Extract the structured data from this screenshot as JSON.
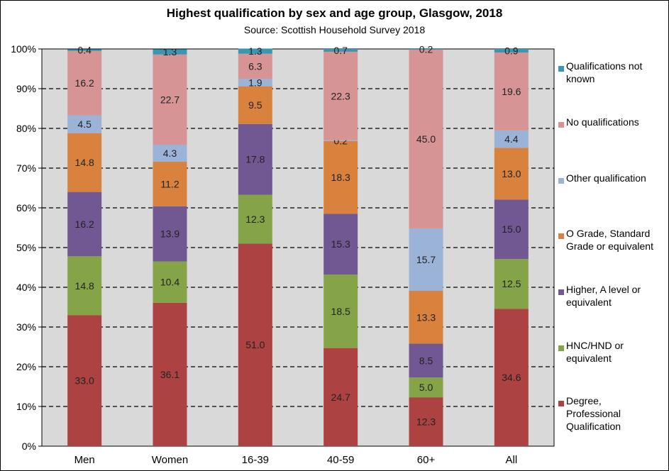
{
  "chart_data": {
    "type": "bar",
    "stacked": true,
    "title": "Highest qualification by sex and age group, Glasgow, 2018",
    "subtitle": "Source: Scottish Household Survey 2018",
    "categories": [
      "Men",
      "Women",
      "16-39",
      "40-59",
      "60+",
      "All"
    ],
    "y_ticks": [
      "0%",
      "10%",
      "20%",
      "30%",
      "40%",
      "50%",
      "60%",
      "70%",
      "80%",
      "90%",
      "100%"
    ],
    "ylim": [
      0,
      100
    ],
    "legend_position": "right",
    "series": [
      {
        "name": "Degree, Professional Qualification",
        "color": "#AC4241",
        "values": [
          33.0,
          36.1,
          51.0,
          24.7,
          12.3,
          34.6
        ]
      },
      {
        "name": "HNC/HND or equivalent",
        "color": "#84A447",
        "values": [
          14.8,
          10.4,
          12.3,
          18.5,
          5.0,
          12.5
        ]
      },
      {
        "name": "Higher, A level or equivalent",
        "color": "#725892",
        "values": [
          16.2,
          13.9,
          17.8,
          15.3,
          8.5,
          15.0
        ]
      },
      {
        "name": "O Grade, Standard Grade or equivalent",
        "color": "#D9823D",
        "values": [
          14.8,
          11.2,
          9.5,
          18.3,
          13.3,
          13.0
        ]
      },
      {
        "name": "Other qualification",
        "color": "#9AB3D6",
        "values": [
          4.5,
          4.3,
          1.9,
          0.2,
          15.7,
          4.4
        ]
      },
      {
        "name": "No qualifications",
        "color": "#D69495",
        "values": [
          16.2,
          22.7,
          6.3,
          22.3,
          45.0,
          19.6
        ]
      },
      {
        "name": "Qualifications not known",
        "color": "#3A97B2",
        "values": [
          0.4,
          1.3,
          1.3,
          0.7,
          0.2,
          0.9
        ]
      }
    ]
  },
  "colors": {
    "plot_background": "#D9D9D9",
    "gridline": "#000000"
  }
}
